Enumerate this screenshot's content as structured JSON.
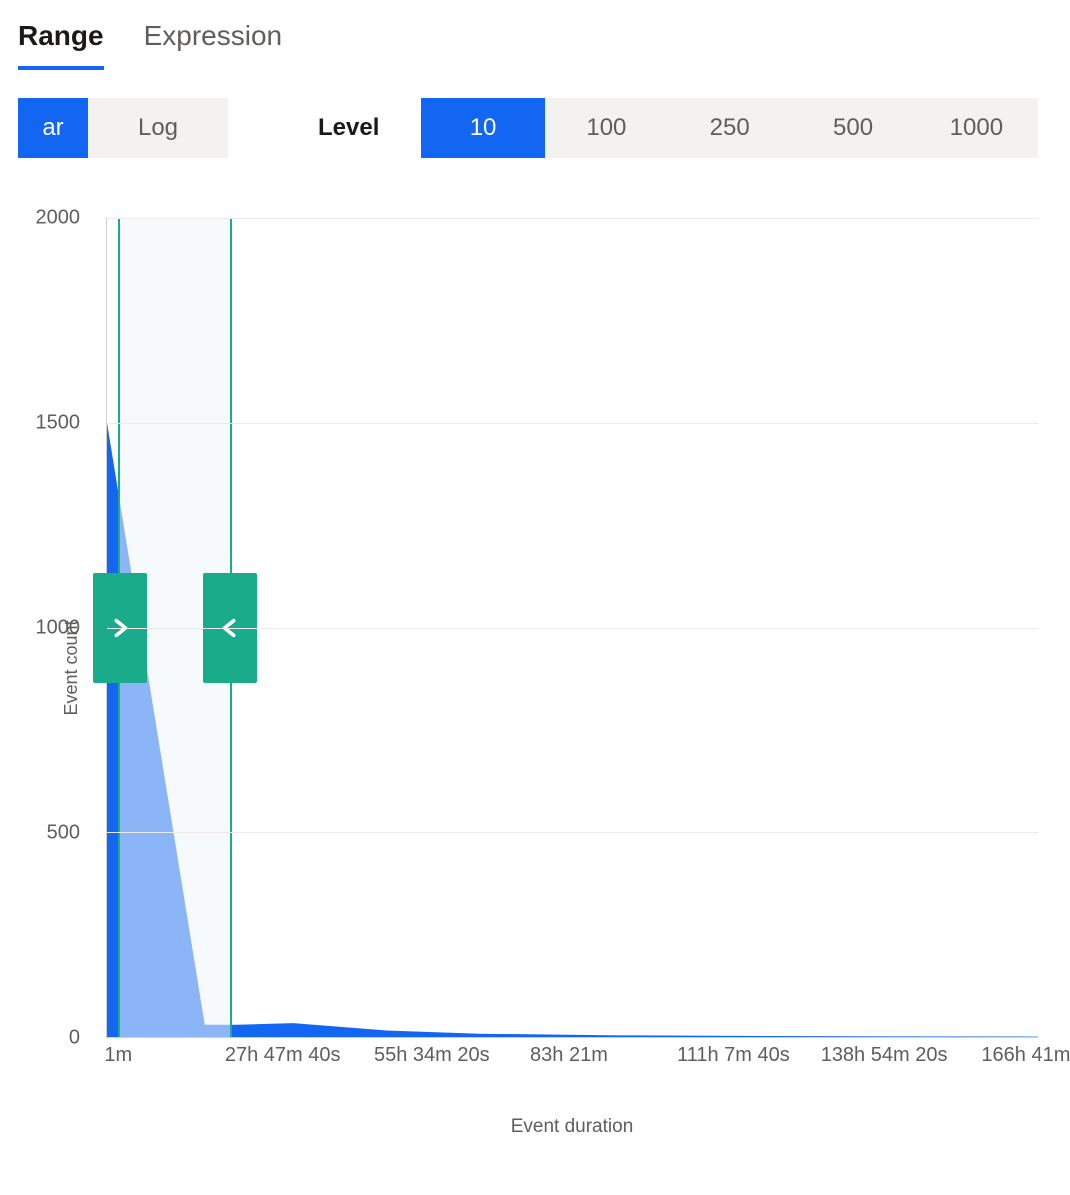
{
  "tabs": {
    "items": [
      {
        "label": "Range",
        "active": true
      },
      {
        "label": "Expression",
        "active": false
      }
    ]
  },
  "scale_toggle": {
    "options": [
      {
        "label": "ar",
        "active": true
      },
      {
        "label": "Log",
        "active": false
      }
    ]
  },
  "level_label": "Level",
  "level_toggle": {
    "options": [
      {
        "label": "10",
        "active": true
      },
      {
        "label": "100",
        "active": false
      },
      {
        "label": "250",
        "active": false
      },
      {
        "label": "500",
        "active": false
      },
      {
        "label": "1000",
        "active": false
      }
    ]
  },
  "chart": {
    "type": "area",
    "ylabel": "Event count",
    "xlabel": "Event duration",
    "ylim": [
      0,
      2000
    ],
    "yticks": [
      0,
      500,
      1000,
      1500,
      2000
    ],
    "xticks": [
      "1m",
      "27h 47m 40s",
      "55h 34m 20s",
      "83h 21m",
      "111h 7m 40s",
      "138h 54m 20s",
      "166h 41m"
    ],
    "xtick_positions_pct": [
      0,
      13.5,
      29.5,
      46,
      62,
      77.5,
      94.5
    ],
    "series_points_xy_pct": [
      [
        0,
        25
      ],
      [
        10.5,
        98.5
      ],
      [
        14,
        98.5
      ],
      [
        20,
        98.3
      ],
      [
        30,
        99.2
      ],
      [
        40,
        99.6
      ],
      [
        55,
        99.8
      ],
      [
        65,
        99.85
      ],
      [
        75,
        99.9
      ],
      [
        100,
        99.95
      ]
    ],
    "fill_color": "#1266f1",
    "fill_opacity": 1,
    "background_color": "#ffffff",
    "grid_color": "#edebe9",
    "axis_color": "#d2d0ce",
    "brush": {
      "start_pct": 1.2,
      "end_pct": 13.4,
      "border_color": "#1aab8a",
      "handle_color": "#1aab8a",
      "region_color": "rgba(240,246,252,0.55)"
    },
    "axis_font_size_pt": 15,
    "label_font_size_pt": 14
  }
}
